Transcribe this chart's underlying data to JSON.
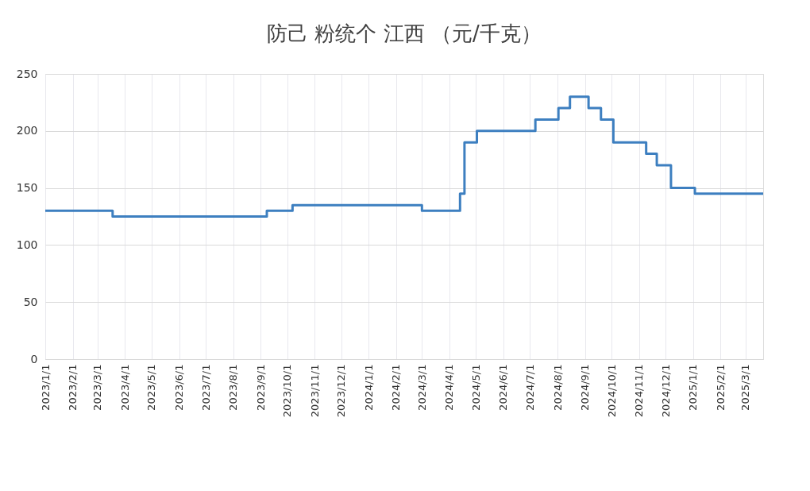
{
  "chart_data": {
    "type": "step",
    "title": "防己 粉统个 江西 （元/千克）",
    "x": [
      "2023-01-01",
      "2023-03-18",
      "2023-09-08",
      "2023-10-07",
      "2024-03-01",
      "2024-04-13",
      "2024-04-18",
      "2024-05-02",
      "2024-07-07",
      "2024-08-02",
      "2024-08-15",
      "2024-09-05",
      "2024-09-19",
      "2024-10-03",
      "2024-11-09",
      "2024-11-21",
      "2024-12-07",
      "2025-01-03",
      "2025-03-21"
    ],
    "series": [
      {
        "color": "#3d7fc0",
        "values": [
          130,
          125,
          130,
          135,
          130,
          145,
          190,
          200,
          210,
          220,
          230,
          220,
          210,
          190,
          180,
          170,
          150,
          145,
          145
        ]
      }
    ],
    "xlim": [
      "2023-01-01",
      "2025-03-21"
    ],
    "xticks": [
      {
        "value": "2023-01-01",
        "label": "2023/1/1"
      },
      {
        "value": "2023-02-01",
        "label": "2023/2/1"
      },
      {
        "value": "2023-03-01",
        "label": "2023/3/1"
      },
      {
        "value": "2023-04-01",
        "label": "2023/4/1"
      },
      {
        "value": "2023-05-01",
        "label": "2023/5/1"
      },
      {
        "value": "2023-06-01",
        "label": "2023/6/1"
      },
      {
        "value": "2023-07-01",
        "label": "2023/7/1"
      },
      {
        "value": "2023-08-01",
        "label": "2023/8/1"
      },
      {
        "value": "2023-09-01",
        "label": "2023/9/1"
      },
      {
        "value": "2023-10-01",
        "label": "2023/10/1"
      },
      {
        "value": "2023-11-01",
        "label": "2023/11/1"
      },
      {
        "value": "2023-12-01",
        "label": "2023/12/1"
      },
      {
        "value": "2024-01-01",
        "label": "2024/1/1"
      },
      {
        "value": "2024-02-01",
        "label": "2024/2/1"
      },
      {
        "value": "2024-03-01",
        "label": "2024/3/1"
      },
      {
        "value": "2024-04-01",
        "label": "2024/4/1"
      },
      {
        "value": "2024-05-01",
        "label": "2024/5/1"
      },
      {
        "value": "2024-06-01",
        "label": "2024/6/1"
      },
      {
        "value": "2024-07-01",
        "label": "2024/7/1"
      },
      {
        "value": "2024-08-01",
        "label": "2024/8/1"
      },
      {
        "value": "2024-09-01",
        "label": "2024/9/1"
      },
      {
        "value": "2024-10-01",
        "label": "2024/10/1"
      },
      {
        "value": "2024-11-01",
        "label": "2024/11/1"
      },
      {
        "value": "2024-12-01",
        "label": "2024/12/1"
      },
      {
        "value": "2025-01-01",
        "label": "2025/1/1"
      },
      {
        "value": "2025-02-01",
        "label": "2025/2/1"
      },
      {
        "value": "2025-03-01",
        "label": "2025/3/1"
      }
    ],
    "ylim": [
      0,
      250
    ],
    "yticks": [
      0,
      50,
      100,
      150,
      200,
      250
    ],
    "grid": true,
    "legend": false,
    "marker": "none",
    "line_style": "solid"
  }
}
